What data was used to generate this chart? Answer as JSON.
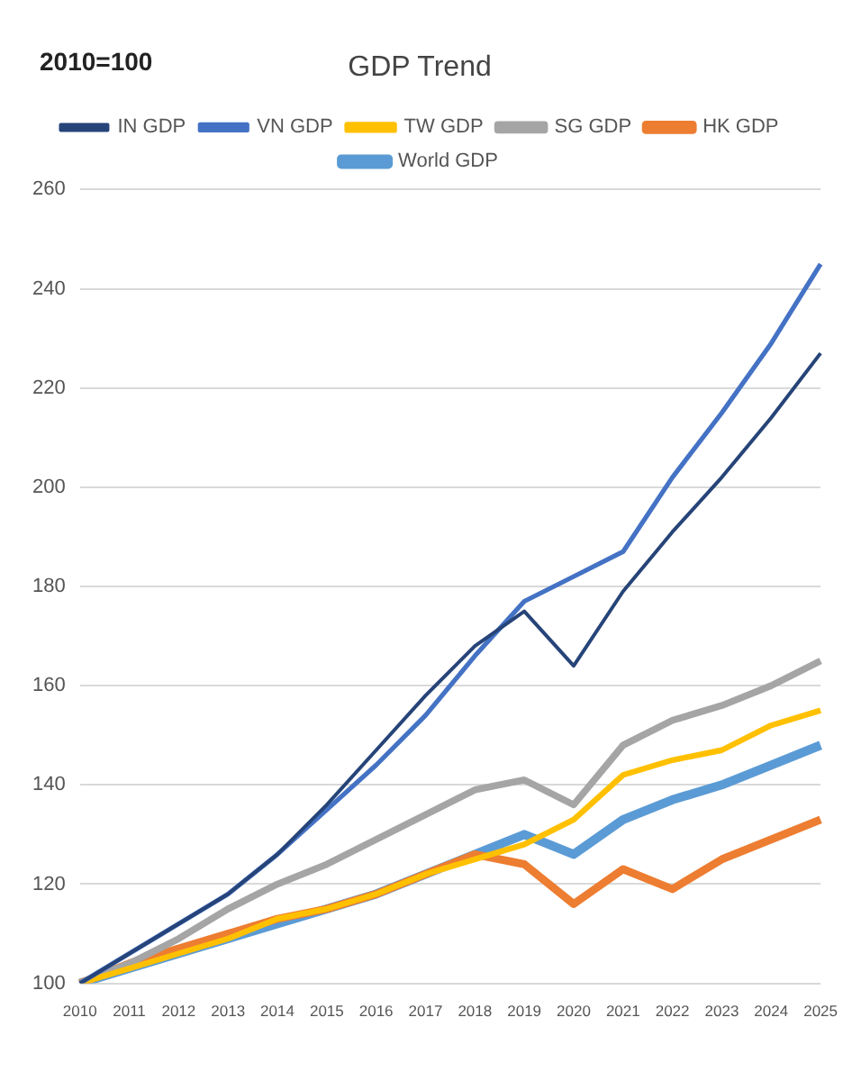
{
  "chart_data": {
    "type": "line",
    "title": "GDP Trend",
    "ylabel": "2010=100",
    "categories": [
      "2010",
      "2011",
      "2012",
      "2013",
      "2014",
      "2015",
      "2016",
      "2017",
      "2018",
      "2019",
      "2020",
      "2021",
      "2022",
      "2023",
      "2024",
      "2025"
    ],
    "series": [
      {
        "name": "World GDP",
        "color": "#5b9bd5",
        "values": [
          100,
          103,
          106,
          109,
          112,
          115,
          118,
          122,
          126,
          130,
          126,
          133,
          137,
          140,
          144,
          148
        ]
      },
      {
        "name": "HK GDP",
        "color": "#ed7d31",
        "values": [
          100,
          104,
          107,
          110,
          113,
          115,
          118,
          122,
          126,
          124,
          116,
          123,
          119,
          125,
          129,
          133
        ]
      },
      {
        "name": "SG GDP",
        "color": "#a5a5a5",
        "values": [
          100,
          104,
          109,
          115,
          120,
          124,
          129,
          134,
          139,
          141,
          136,
          148,
          153,
          156,
          160,
          165
        ]
      },
      {
        "name": "TW GDP",
        "color": "#ffc000",
        "values": [
          100,
          103,
          106,
          109,
          113,
          115,
          118,
          122,
          125,
          128,
          133,
          142,
          145,
          147,
          152,
          155
        ]
      },
      {
        "name": "VN GDP",
        "color": "#4472c4",
        "values": [
          100,
          106,
          112,
          118,
          126,
          135,
          144,
          154,
          166,
          177,
          182,
          187,
          202,
          215,
          229,
          245
        ]
      },
      {
        "name": "IN GDP",
        "color": "#264478",
        "values": [
          100,
          106,
          112,
          118,
          126,
          136,
          147,
          158,
          168,
          175,
          164,
          179,
          191,
          202,
          214,
          227
        ]
      }
    ],
    "ylim": [
      100,
      260
    ],
    "yticks": [
      100,
      120,
      140,
      160,
      180,
      200,
      220,
      240,
      260
    ],
    "grid": "y",
    "legend": "top",
    "marker": "none",
    "line_style": "solid"
  }
}
